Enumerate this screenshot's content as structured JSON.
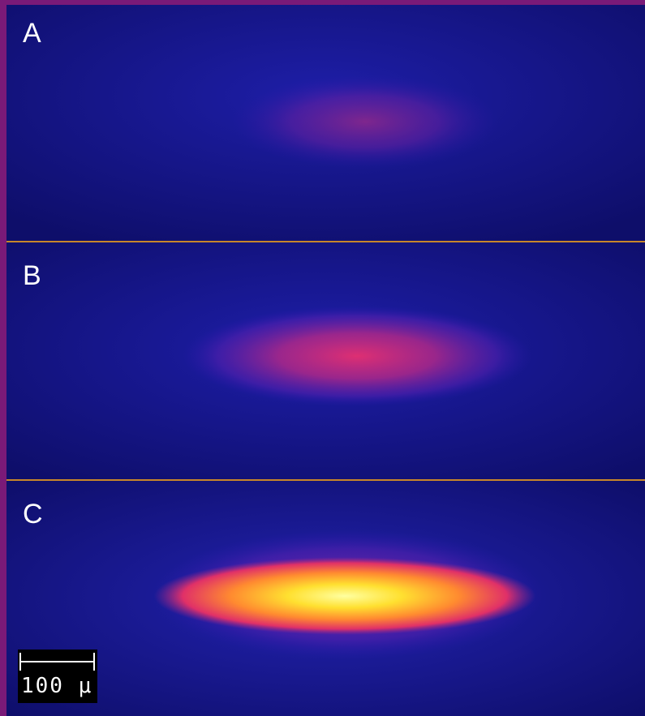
{
  "panels": [
    {
      "label": "A",
      "intensity": 0.18
    },
    {
      "label": "B",
      "intensity": 0.45
    },
    {
      "label": "C",
      "intensity": 1.0
    }
  ],
  "scale_bar": {
    "label": "100 μ"
  },
  "colors": {
    "background": "#12126e",
    "border": "#7a1a78",
    "separator": "#c8862a",
    "colormap": [
      "#10106a",
      "#3a1a9a",
      "#8a2090",
      "#e0306a",
      "#ff7a30",
      "#ffd020",
      "#ffff90"
    ]
  }
}
